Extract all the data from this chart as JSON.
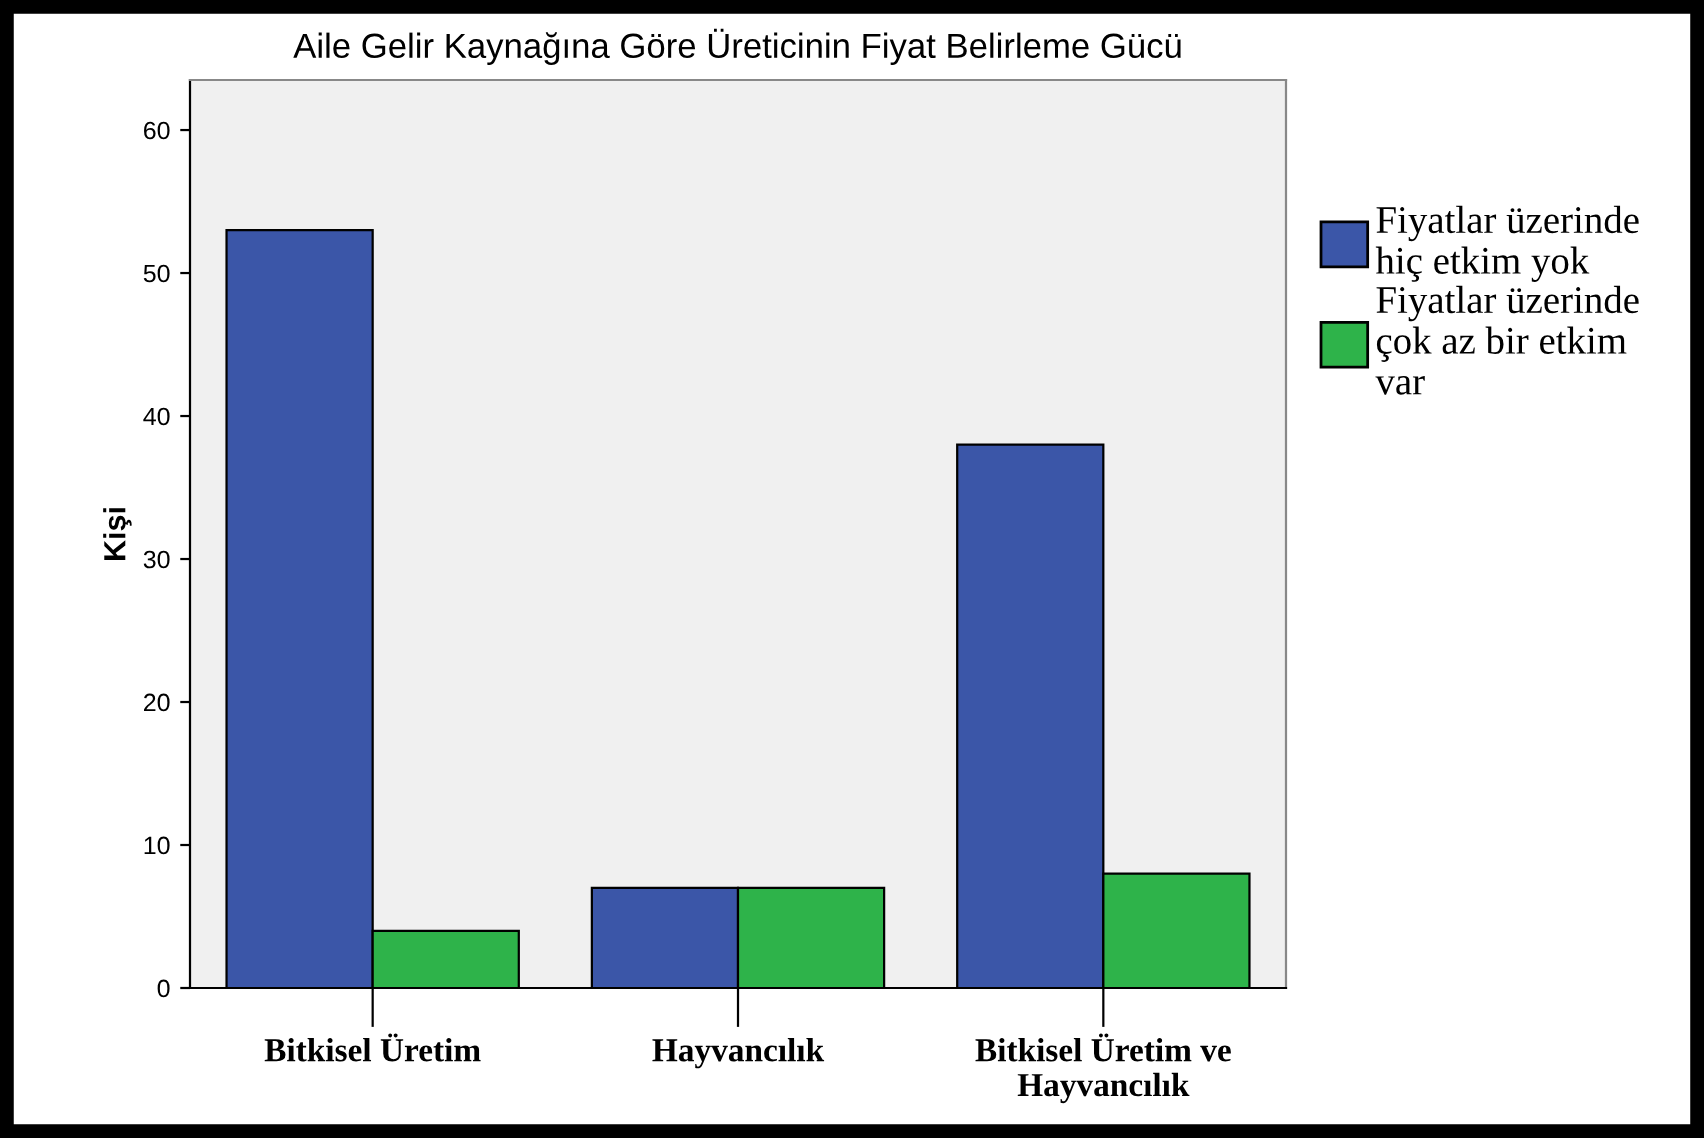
{
  "chart_data": {
    "type": "bar",
    "title": "Aile Gelir Kaynağına Göre Üreticinin Fiyat Belirleme Gücü",
    "ylabel": "Kişi",
    "categories": [
      "Bitkisel Üretim",
      "Hayvancılık",
      "Bitkisel Üretim ve\nHayvancılık"
    ],
    "series": [
      {
        "name": "Fiyatlar üzerinde\nhiç etkim yok",
        "color": "#3b56a8",
        "values": [
          53,
          7,
          38
        ]
      },
      {
        "name": "Fiyatlar üzerinde\nçok az bir etkim\nvar",
        "color": "#2eb34a",
        "values": [
          4,
          7,
          8
        ]
      }
    ],
    "ylim": [
      0,
      63.5
    ],
    "yticks": [
      0,
      10,
      20,
      30,
      40,
      50,
      60
    ],
    "grid": false,
    "legend": "right"
  }
}
